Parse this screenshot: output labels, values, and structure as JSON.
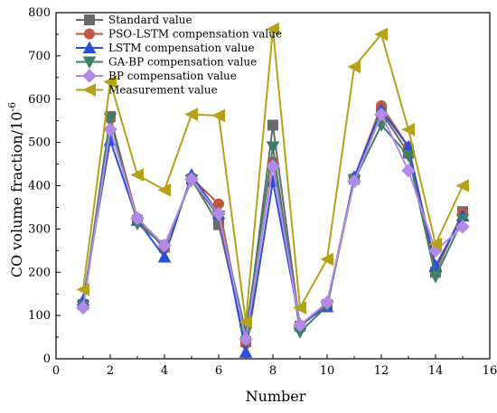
{
  "chart_data": {
    "type": "line",
    "title": "",
    "xlabel": "Number",
    "ylabel_main": "CO volume fraction/10",
    "ylabel_exp": "-6",
    "xlim": [
      0,
      16
    ],
    "ylim": [
      0,
      800
    ],
    "xticks": [
      0,
      2,
      4,
      6,
      8,
      10,
      12,
      14,
      16
    ],
    "yticks": [
      0,
      100,
      200,
      300,
      400,
      500,
      600,
      700,
      800
    ],
    "legend_position": "top-left",
    "grid": false,
    "x": [
      1,
      2,
      3,
      4,
      5,
      6,
      7,
      8,
      9,
      10,
      11,
      12,
      13,
      14,
      15
    ],
    "series": [
      {
        "name": "Standard value",
        "color": "#6b6b6b",
        "marker": "square",
        "values": [
          125,
          560,
          320,
          258,
          415,
          310,
          40,
          540,
          75,
          125,
          415,
          570,
          475,
          200,
          340
        ]
      },
      {
        "name": "PSO-LSTM compensation value",
        "color": "#c0583c",
        "marker": "circle",
        "values": [
          120,
          555,
          325,
          255,
          418,
          358,
          35,
          455,
          78,
          128,
          418,
          585,
          490,
          205,
          338
        ]
      },
      {
        "name": "LSTM compensation value",
        "color": "#2b4fd6",
        "marker": "triangle-up",
        "values": [
          135,
          505,
          320,
          235,
          425,
          335,
          15,
          410,
          80,
          120,
          420,
          575,
          490,
          215,
          330
        ]
      },
      {
        "name": "GA-BP compensation value",
        "color": "#3f7f6a",
        "marker": "triangle-down",
        "values": [
          122,
          555,
          312,
          262,
          412,
          330,
          62,
          490,
          62,
          122,
          412,
          540,
          470,
          190,
          322
        ]
      },
      {
        "name": "BP compensation value",
        "color": "#b48ae8",
        "marker": "diamond",
        "values": [
          118,
          530,
          325,
          262,
          415,
          335,
          45,
          445,
          78,
          130,
          410,
          565,
          435,
          250,
          305
        ]
      },
      {
        "name": "Measurement value",
        "color": "#b5a11a",
        "marker": "arrow-left",
        "values": [
          160,
          640,
          425,
          390,
          565,
          562,
          85,
          762,
          118,
          230,
          675,
          750,
          530,
          265,
          400
        ]
      }
    ]
  }
}
